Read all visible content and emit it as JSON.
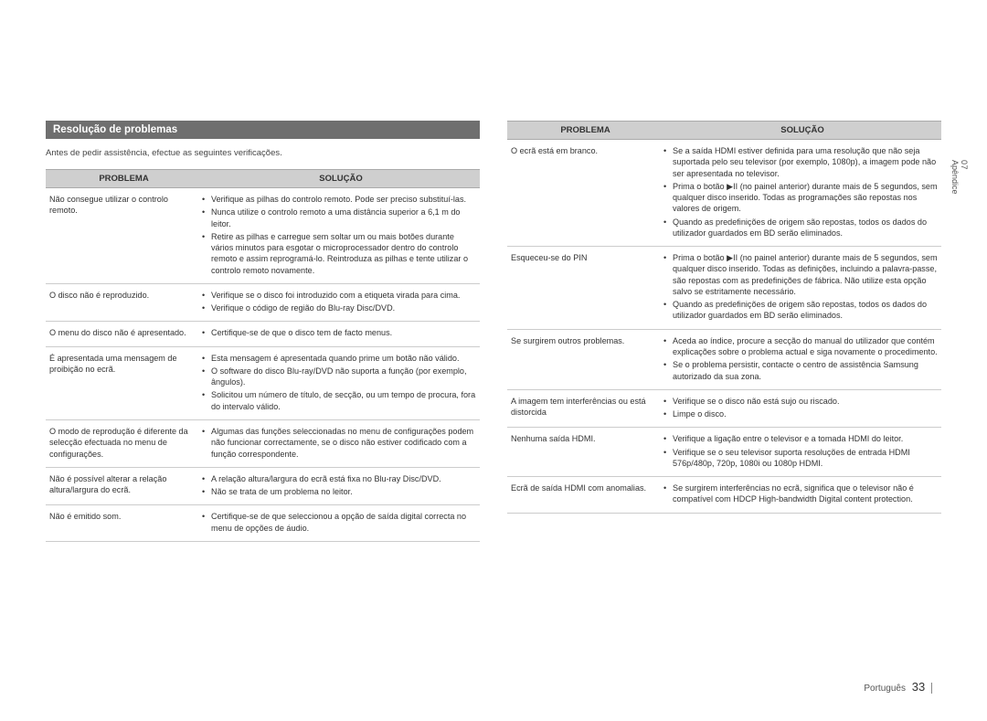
{
  "section_title": "Resolução de problemas",
  "intro": "Antes de pedir assistência, efectue as seguintes verificações.",
  "headers": {
    "problem": "PROBLEMA",
    "solution": "SOLUÇÃO"
  },
  "side_tab": {
    "num": "07",
    "label": "Apêndice"
  },
  "footer": {
    "lang": "Português",
    "page": "33"
  },
  "left_rows": [
    {
      "p": "Não consegue utilizar o controlo remoto.",
      "s": [
        "Verifique as pilhas do controlo remoto. Pode ser preciso substituí-las.",
        "Nunca utilize o controlo remoto a uma distância superior a 6,1 m do leitor.",
        "Retire as pilhas e carregue sem soltar um ou mais botões durante vários minutos para esgotar o microprocessador dentro do controlo remoto e assim reprogramá-lo. Reintroduza as pilhas e tente utilizar o controlo remoto novamente."
      ]
    },
    {
      "p": "O disco não é reproduzido.",
      "s": [
        "Verifique se o disco foi introduzido com a etiqueta virada para cima.",
        "Verifique o código de região do Blu-ray Disc/DVD."
      ]
    },
    {
      "p": "O menu do disco não é apresentado.",
      "s": [
        "Certifique-se de que o disco tem de facto menus."
      ]
    },
    {
      "p": "É apresentada uma mensagem de proibição no ecrã.",
      "s": [
        "Esta mensagem é apresentada quando prime um botão não válido.",
        "O software do disco Blu-ray/DVD não suporta a função (por exemplo, ângulos).",
        "Solicitou um número de título, de secção, ou um tempo de procura, fora do intervalo válido."
      ]
    },
    {
      "p": "O modo de reprodução é diferente da selecção efectuada no menu de configurações.",
      "s": [
        "Algumas das funções seleccionadas no menu de configurações podem não funcionar correctamente, se o disco não estiver codificado com a função correspondente."
      ]
    },
    {
      "p": "Não é possível alterar a relação altura/largura do ecrã.",
      "s": [
        "A relação altura/largura do ecrã está fixa no Blu-ray Disc/DVD.",
        "Não se trata de um problema no leitor."
      ]
    },
    {
      "p": "Não é emitido som.",
      "s": [
        "Certifique-se de que seleccionou a opção de saída digital correcta no menu de opções de áudio."
      ]
    }
  ],
  "right_rows": [
    {
      "p": "O ecrã está em branco.",
      "s": [
        "Se a saída HDMI estiver definida para uma resolução que não seja suportada pelo seu televisor (por exemplo, 1080p), a imagem pode não ser apresentada no televisor.",
        "Prima o botão ▶II (no painel anterior) durante mais de 5 segundos, sem qualquer disco inserido. Todas as programações são repostas nos valores de origem.",
        "Quando as predefinições de origem são repostas, todos os dados do utilizador guardados em BD serão eliminados."
      ]
    },
    {
      "p": "Esqueceu-se do PIN",
      "s": [
        "Prima o botão ▶II (no painel anterior) durante mais de 5 segundos, sem qualquer disco inserido. Todas as definições, incluindo a palavra-passe, são repostas com as predefinições de fábrica. Não utilize esta opção salvo se estritamente necessário.",
        "Quando as predefinições de origem são repostas, todos os dados do utilizador guardados em BD serão eliminados."
      ]
    },
    {
      "p": "Se surgirem outros problemas.",
      "s": [
        "Aceda ao índice, procure a secção do manual do utilizador que contém explicações sobre o problema actual e siga novamente o procedimento.",
        "Se o problema persistir, contacte o centro de assistência Samsung autorizado da sua zona."
      ]
    },
    {
      "p": "A imagem tem interferências ou está distorcida",
      "s": [
        "Verifique se o disco não está sujo ou riscado.",
        "Limpe o disco."
      ]
    },
    {
      "p": "Nenhuma saída HDMI.",
      "s": [
        "Verifique a ligação entre o televisor e a tomada HDMI do leitor.",
        "Verifique se o seu televisor suporta resoluções de entrada HDMI 576p/480p, 720p, 1080i ou 1080p HDMI."
      ]
    },
    {
      "p": "Ecrã de saída HDMI com anomalias.",
      "s": [
        "Se surgirem interferências no ecrã, significa que o televisor não é compatível com HDCP High-bandwidth Digital content protection."
      ]
    }
  ]
}
